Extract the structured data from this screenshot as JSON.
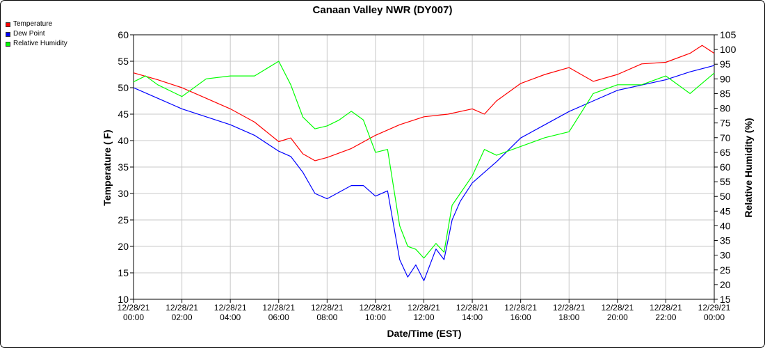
{
  "chart_data": {
    "type": "line",
    "title": "Canaan Valley NWR (DY007)",
    "xlabel": "Date/Time (EST)",
    "ylabel": "Temperature ( F)",
    "y2label": "Relative Humidity (%)",
    "ylim": [
      10,
      60
    ],
    "y2lim": [
      15,
      105
    ],
    "grid": true,
    "legend_position": "top-left",
    "x_ticks": [
      {
        "date": "12/28/21",
        "time": "00:00"
      },
      {
        "date": "12/28/21",
        "time": "02:00"
      },
      {
        "date": "12/28/21",
        "time": "04:00"
      },
      {
        "date": "12/28/21",
        "time": "06:00"
      },
      {
        "date": "12/28/21",
        "time": "08:00"
      },
      {
        "date": "12/28/21",
        "time": "10:00"
      },
      {
        "date": "12/28/21",
        "time": "12:00"
      },
      {
        "date": "12/28/21",
        "time": "14:00"
      },
      {
        "date": "12/28/21",
        "time": "16:00"
      },
      {
        "date": "12/28/21",
        "time": "18:00"
      },
      {
        "date": "12/28/21",
        "time": "20:00"
      },
      {
        "date": "12/28/21",
        "time": "22:00"
      },
      {
        "date": "12/29/21",
        "time": "00:00"
      }
    ],
    "y_ticks": [
      "10",
      "15",
      "20",
      "25",
      "30",
      "35",
      "40",
      "45",
      "50",
      "55",
      "60"
    ],
    "y2_ticks": [
      "15",
      "20",
      "25",
      "30",
      "35",
      "40",
      "45",
      "50",
      "55",
      "60",
      "65",
      "70",
      "75",
      "80",
      "85",
      "90",
      "95",
      "100",
      "105"
    ],
    "series": [
      {
        "name": "Temperature",
        "color": "#ff0000",
        "axis": "left",
        "x": [
          "12/28/21 00:00",
          "12/28/21 01:00",
          "12/28/21 02:00",
          "12/28/21 03:00",
          "12/28/21 04:00",
          "12/28/21 05:00",
          "12/28/21 06:00",
          "12/28/21 06:30",
          "12/28/21 07:00",
          "12/28/21 07:30",
          "12/28/21 08:00",
          "12/28/21 09:00",
          "12/28/21 10:00",
          "12/28/21 11:00",
          "12/28/21 12:00",
          "12/28/21 13:00",
          "12/28/21 14:00",
          "12/28/21 14:30",
          "12/28/21 15:00",
          "12/28/21 16:00",
          "12/28/21 17:00",
          "12/28/21 18:00",
          "12/28/21 19:00",
          "12/28/21 20:00",
          "12/28/21 21:00",
          "12/28/21 22:00",
          "12/28/21 23:00",
          "12/28/21 23:30",
          "12/29/21 00:00"
        ],
        "values": [
          52.8,
          51.5,
          50.0,
          48.0,
          46.0,
          43.5,
          39.8,
          40.5,
          37.5,
          36.2,
          36.8,
          38.5,
          41.0,
          43.0,
          44.5,
          45.0,
          46.0,
          45.0,
          47.5,
          50.8,
          52.5,
          53.8,
          51.2,
          52.5,
          54.5,
          54.8,
          56.5,
          58.0,
          56.5
        ]
      },
      {
        "name": "Dew Point",
        "color": "#0000ff",
        "axis": "left",
        "x": [
          "12/28/21 00:00",
          "12/28/21 01:00",
          "12/28/21 02:00",
          "12/28/21 03:00",
          "12/28/21 04:00",
          "12/28/21 05:00",
          "12/28/21 06:00",
          "12/28/21 06:30",
          "12/28/21 07:00",
          "12/28/21 07:30",
          "12/28/21 08:00",
          "12/28/21 09:00",
          "12/28/21 09:30",
          "12/28/21 10:00",
          "12/28/21 10:30",
          "12/28/21 11:00",
          "12/28/21 11:20",
          "12/28/21 11:40",
          "12/28/21 12:00",
          "12/28/21 12:30",
          "12/28/21 12:50",
          "12/28/21 13:10",
          "12/28/21 13:30",
          "12/28/21 14:00",
          "12/28/21 14:30",
          "12/28/21 15:00",
          "12/28/21 16:00",
          "12/28/21 17:00",
          "12/28/21 18:00",
          "12/28/21 19:00",
          "12/28/21 20:00",
          "12/28/21 21:00",
          "12/28/21 22:00",
          "12/28/21 23:00",
          "12/29/21 00:00"
        ],
        "values": [
          50.0,
          48.0,
          46.0,
          44.5,
          43.0,
          41.0,
          38.0,
          37.0,
          34.0,
          30.0,
          29.0,
          31.5,
          31.5,
          29.5,
          30.5,
          17.5,
          14.2,
          16.5,
          13.5,
          19.5,
          17.5,
          25.0,
          28.5,
          32.0,
          34.0,
          36.0,
          40.5,
          43.0,
          45.5,
          47.5,
          49.5,
          50.5,
          51.5,
          53.0,
          54.2
        ]
      },
      {
        "name": "Relative Humidity",
        "color": "#00ff00",
        "axis": "right",
        "x": [
          "12/28/21 00:00",
          "12/28/21 00:30",
          "12/28/21 01:00",
          "12/28/21 02:00",
          "12/28/21 03:00",
          "12/28/21 04:00",
          "12/28/21 05:00",
          "12/28/21 06:00",
          "12/28/21 06:30",
          "12/28/21 07:00",
          "12/28/21 07:30",
          "12/28/21 08:00",
          "12/28/21 08:30",
          "12/28/21 09:00",
          "12/28/21 09:30",
          "12/28/21 10:00",
          "12/28/21 10:30",
          "12/28/21 11:00",
          "12/28/21 11:20",
          "12/28/21 11:40",
          "12/28/21 12:00",
          "12/28/21 12:30",
          "12/28/21 12:50",
          "12/28/21 13:10",
          "12/28/21 13:30",
          "12/28/21 14:00",
          "12/28/21 14:30",
          "12/28/21 15:00",
          "12/28/21 16:00",
          "12/28/21 17:00",
          "12/28/21 18:00",
          "12/28/21 19:00",
          "12/28/21 20:00",
          "12/28/21 21:00",
          "12/28/21 22:00",
          "12/28/21 23:00",
          "12/29/21 00:00"
        ],
        "values": [
          89,
          91,
          88,
          84,
          90,
          91,
          91,
          96,
          88,
          77,
          73,
          74,
          76,
          79,
          76,
          65,
          66,
          40,
          33,
          32,
          29,
          34,
          31,
          47,
          51,
          57,
          66,
          64,
          67,
          70,
          72,
          85,
          88,
          88,
          91,
          85,
          92
        ]
      }
    ]
  }
}
